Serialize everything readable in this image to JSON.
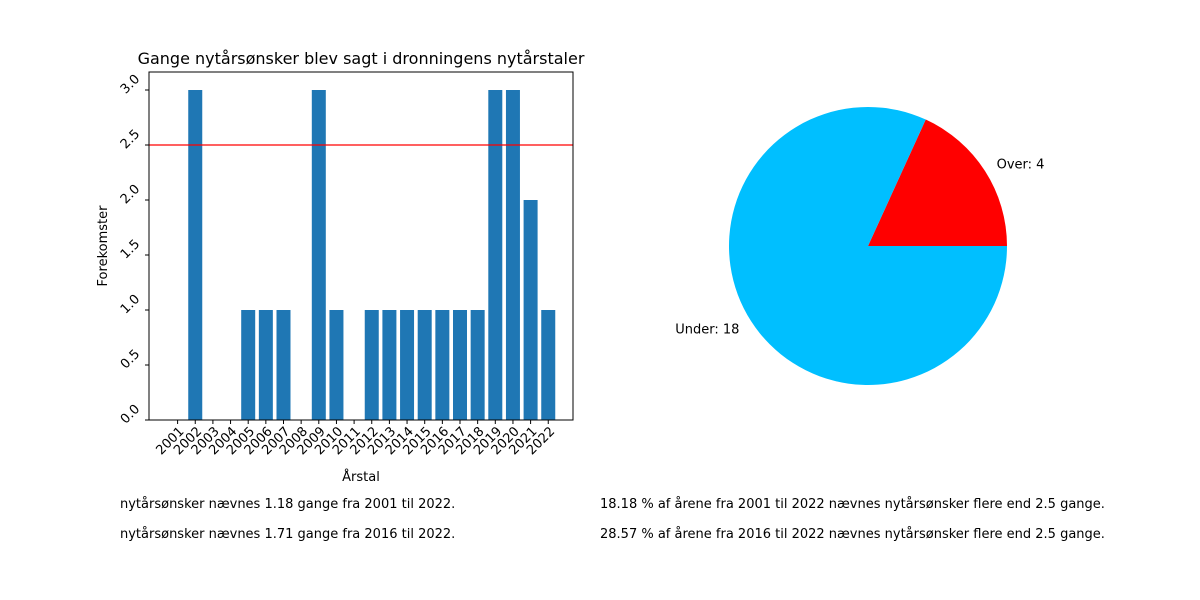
{
  "chart_data": [
    {
      "type": "bar",
      "title": "Gange nytårsønsker blev sagt i dronningens nytårstaler",
      "xlabel": "Årstal",
      "ylabel": "Forekomster",
      "categories": [
        "2001",
        "2002",
        "2003",
        "2004",
        "2005",
        "2006",
        "2007",
        "2008",
        "2009",
        "2010",
        "2011",
        "2012",
        "2013",
        "2014",
        "2015",
        "2016",
        "2017",
        "2018",
        "2019",
        "2020",
        "2021",
        "2022"
      ],
      "values": [
        0,
        3,
        0,
        0,
        1,
        1,
        1,
        0,
        3,
        1,
        0,
        1,
        1,
        1,
        1,
        1,
        1,
        1,
        3,
        3,
        2,
        1
      ],
      "ylim": [
        0,
        3.0
      ],
      "yticks": [
        "0.0",
        "0.5",
        "1.0",
        "1.5",
        "2.0",
        "2.5",
        "3.0"
      ],
      "threshold": 2.5,
      "grid": false,
      "colors": {
        "bar": "#1f77b4",
        "threshold": "#ff0000"
      }
    },
    {
      "type": "pie",
      "slices": [
        {
          "label": "Over: 4",
          "value": 4,
          "color": "#ff0000"
        },
        {
          "label": "Under: 18",
          "value": 18,
          "color": "#00bfff"
        }
      ]
    }
  ],
  "stats": [
    "nytårsønsker nævnes 1.18 gange fra 2001 til 2022.",
    "nytårsønsker nævnes 1.71 gange fra 2016 til 2022.",
    "18.18 % af årene fra 2001 til 2022 nævnes nytårsønsker flere end 2.5 gange.",
    "28.57 % af årene fra 2016 til 2022 nævnes nytårsønsker flere end 2.5 gange."
  ]
}
